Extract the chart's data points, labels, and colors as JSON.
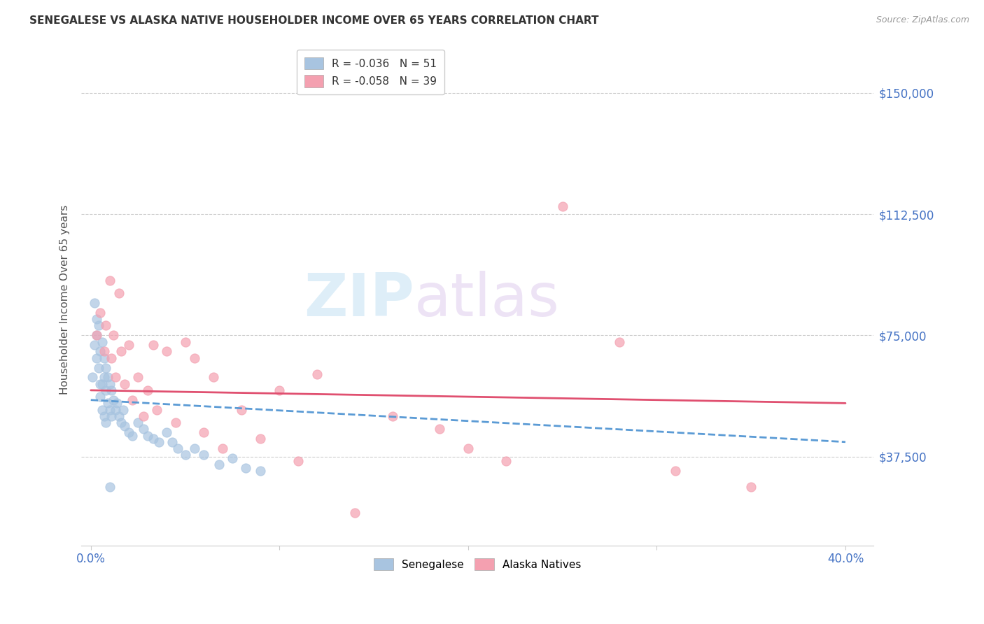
{
  "title": "SENEGALESE VS ALASKA NATIVE HOUSEHOLDER INCOME OVER 65 YEARS CORRELATION CHART",
  "source": "Source: ZipAtlas.com",
  "ylabel": "Householder Income Over 65 years",
  "xlabel_ticks": [
    "0.0%",
    "40.0%"
  ],
  "xlabel_vals": [
    0.0,
    0.4
  ],
  "ylabel_ticks": [
    "$37,500",
    "$75,000",
    "$112,500",
    "$150,000"
  ],
  "ylabel_vals": [
    37500,
    75000,
    112500,
    150000
  ],
  "xlim": [
    -0.005,
    0.415
  ],
  "ylim": [
    10000,
    162000
  ],
  "color_blue": "#a8c4e0",
  "color_pink": "#f4a0b0",
  "trendline_blue_color": "#5b9bd5",
  "trendline_pink_color": "#e05070",
  "senegalese_x": [
    0.001,
    0.002,
    0.002,
    0.003,
    0.003,
    0.003,
    0.004,
    0.004,
    0.005,
    0.005,
    0.005,
    0.006,
    0.006,
    0.006,
    0.007,
    0.007,
    0.007,
    0.008,
    0.008,
    0.008,
    0.009,
    0.009,
    0.01,
    0.01,
    0.011,
    0.011,
    0.012,
    0.013,
    0.014,
    0.015,
    0.016,
    0.017,
    0.018,
    0.02,
    0.022,
    0.025,
    0.028,
    0.03,
    0.033,
    0.036,
    0.04,
    0.043,
    0.046,
    0.05,
    0.055,
    0.06,
    0.068,
    0.075,
    0.082,
    0.09,
    0.01
  ],
  "senegalese_y": [
    62000,
    85000,
    72000,
    80000,
    68000,
    75000,
    78000,
    65000,
    70000,
    60000,
    56000,
    73000,
    60000,
    52000,
    68000,
    62000,
    50000,
    65000,
    58000,
    48000,
    62000,
    54000,
    60000,
    52000,
    58000,
    50000,
    55000,
    52000,
    54000,
    50000,
    48000,
    52000,
    47000,
    45000,
    44000,
    48000,
    46000,
    44000,
    43000,
    42000,
    45000,
    42000,
    40000,
    38000,
    40000,
    38000,
    35000,
    37000,
    34000,
    33000,
    28000
  ],
  "alaska_x": [
    0.003,
    0.005,
    0.007,
    0.008,
    0.01,
    0.011,
    0.012,
    0.013,
    0.015,
    0.016,
    0.018,
    0.02,
    0.022,
    0.025,
    0.028,
    0.03,
    0.033,
    0.035,
    0.04,
    0.045,
    0.05,
    0.055,
    0.06,
    0.065,
    0.07,
    0.08,
    0.09,
    0.1,
    0.11,
    0.12,
    0.14,
    0.16,
    0.185,
    0.2,
    0.22,
    0.25,
    0.28,
    0.31,
    0.35
  ],
  "alaska_y": [
    75000,
    82000,
    70000,
    78000,
    92000,
    68000,
    75000,
    62000,
    88000,
    70000,
    60000,
    72000,
    55000,
    62000,
    50000,
    58000,
    72000,
    52000,
    70000,
    48000,
    73000,
    68000,
    45000,
    62000,
    40000,
    52000,
    43000,
    58000,
    36000,
    63000,
    20000,
    50000,
    46000,
    40000,
    36000,
    115000,
    73000,
    33000,
    28000
  ]
}
